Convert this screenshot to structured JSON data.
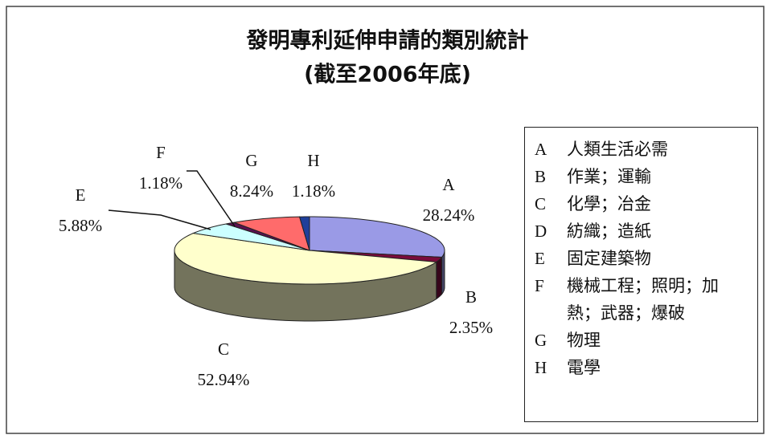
{
  "chart_data": {
    "type": "pie",
    "title": "發明專利延伸申請的類別統計",
    "subtitle": "(截至2006年底)",
    "categories": [
      "A",
      "B",
      "C",
      "D",
      "E",
      "F",
      "G",
      "H"
    ],
    "legend_labels": [
      "人類生活必需",
      "作業；運輸",
      "化學；冶金",
      "紡織；造紙",
      "固定建築物",
      "機械工程；照明；加熱；武器；爆破",
      "物理",
      "電學"
    ],
    "values": [
      28.24,
      2.35,
      52.94,
      null,
      5.88,
      1.18,
      8.24,
      1.18
    ],
    "value_labels": [
      "28.24%",
      "2.35%",
      "52.94%",
      null,
      "5.88%",
      "1.18%",
      "8.24%",
      "1.18%"
    ],
    "colors": [
      "#9a9ae6",
      "#7a0b3c",
      "#ffffcc",
      "#99cc99",
      "#ccffff",
      "#5a1050",
      "#ff6b6b",
      "#1f3f9a"
    ],
    "start_angle": 0,
    "direction": "clockwise",
    "style": "3d"
  }
}
